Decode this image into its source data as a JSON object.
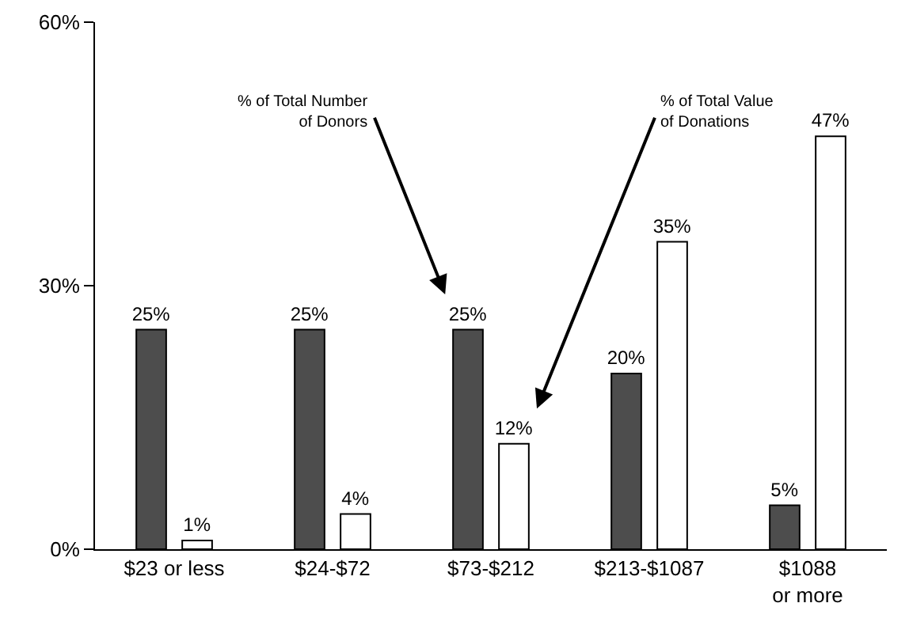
{
  "chart_data": {
    "type": "bar",
    "categories": [
      "$23 or less",
      "$24-$72",
      "$73-$212",
      "$213-$1087",
      "$1088 or more"
    ],
    "series": [
      {
        "name": "% of Total Number of Donors",
        "color": "#4d4d4d",
        "values": [
          25,
          25,
          25,
          20,
          5
        ],
        "value_labels": [
          "25%",
          "25%",
          "25%",
          "20%",
          "5%"
        ]
      },
      {
        "name": "% of Total Value of Donations",
        "color": "#ffffff",
        "values": [
          1,
          4,
          12,
          35,
          47
        ],
        "value_labels": [
          "1%",
          "4%",
          "12%",
          "35%",
          "47%"
        ]
      }
    ],
    "ylim": [
      0,
      60
    ],
    "yticks": [
      {
        "value": 0,
        "label": "0%"
      },
      {
        "value": 30,
        "label": "30%"
      },
      {
        "value": 60,
        "label": "60%"
      }
    ],
    "grid": false,
    "legend": false
  }
}
